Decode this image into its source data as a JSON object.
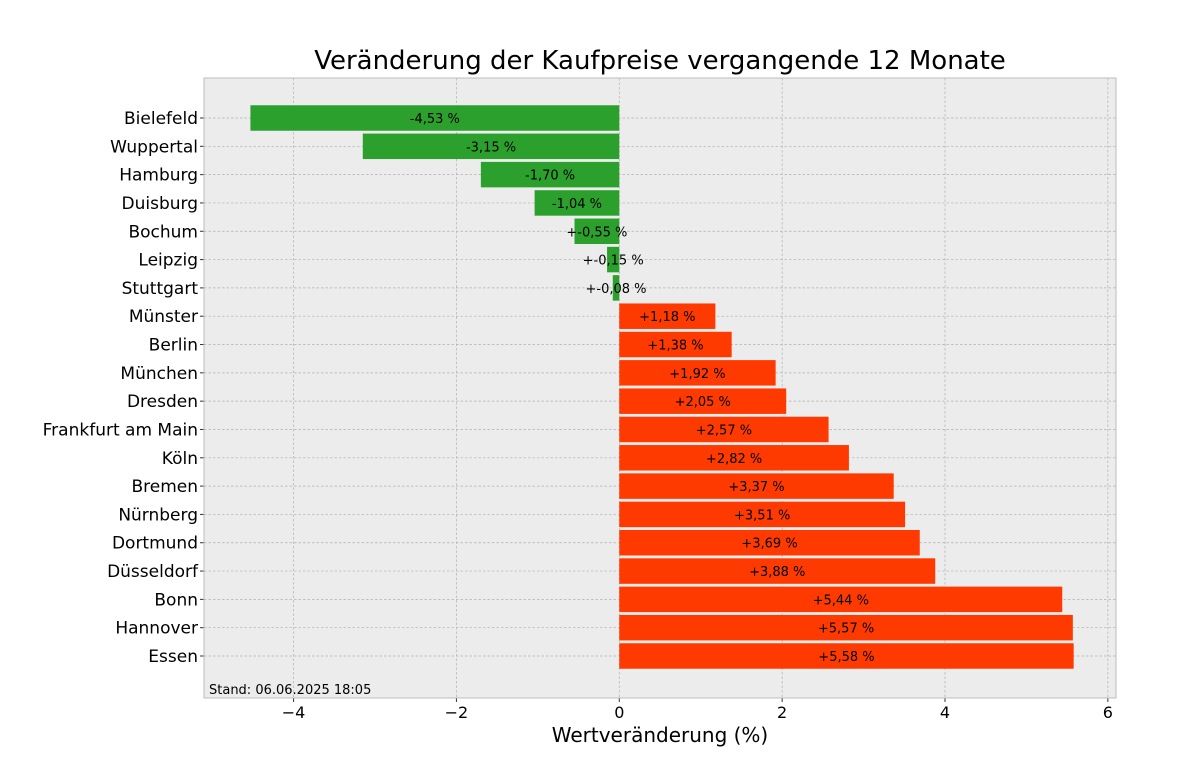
{
  "chart_data": {
    "type": "bar",
    "orientation": "horizontal",
    "title": "Veränderung der Kaufpreise vergangende 12 Monate",
    "xlabel": "Wertveränderung (%)",
    "ylabel": "",
    "xlim": [
      -5.1,
      6.1
    ],
    "xticks": [
      -4,
      -2,
      0,
      2,
      4,
      6
    ],
    "xtick_labels": [
      "−4",
      "−2",
      "0",
      "2",
      "4",
      "6"
    ],
    "grid": true,
    "categories": [
      "Bielefeld",
      "Wuppertal",
      "Hamburg",
      "Duisburg",
      "Bochum",
      "Leipzig",
      "Stuttgart",
      "Münster",
      "Berlin",
      "München",
      "Dresden",
      "Frankfurt am Main",
      "Köln",
      "Bremen",
      "Nürnberg",
      "Dortmund",
      "Düsseldorf",
      "Bonn",
      "Hannover",
      "Essen"
    ],
    "values": [
      -4.53,
      -3.15,
      -1.7,
      -1.04,
      -0.55,
      -0.15,
      -0.08,
      1.18,
      1.38,
      1.92,
      2.05,
      2.57,
      2.82,
      3.37,
      3.51,
      3.69,
      3.88,
      5.44,
      5.57,
      5.58
    ],
    "value_labels": [
      "-4,53 %",
      "-3,15 %",
      "-1,70 %",
      "-1,04 %",
      "+-0,55 %",
      "+-0,15 %",
      "+-0,08 %",
      "+1,18 %",
      "+1,38 %",
      "+1,92 %",
      "+2,05 %",
      "+2,57 %",
      "+2,82 %",
      "+3,37 %",
      "+3,51 %",
      "+3,69 %",
      "+3,88 %",
      "+5,44 %",
      "+5,57 %",
      "+5,58 %"
    ],
    "colors": {
      "negative": "#2ca02c",
      "positive": "#ff3a00",
      "background": "#ececec",
      "grid": "#b0b0b0"
    },
    "annotation": "Stand: 06.06.2025 18:05"
  }
}
